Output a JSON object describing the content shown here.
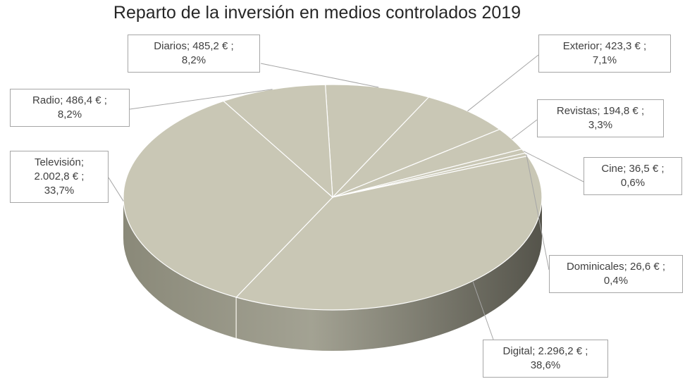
{
  "chart_data": {
    "type": "pie",
    "title": "Reparto de la inversión en medios controlados 2019",
    "unit": "€",
    "slice_color": "#c9c7b5",
    "side_color": "#6f6e63",
    "slices": [
      {
        "name": "Diarios",
        "value": 485.2,
        "percent": 8.2,
        "label_line1": "Diarios;  485,2 € ;",
        "label_line2": "8,2%"
      },
      {
        "name": "Exterior",
        "value": 423.3,
        "percent": 7.1,
        "label_line1": "Exterior;  423,3 € ;",
        "label_line2": "7,1%"
      },
      {
        "name": "Revistas",
        "value": 194.8,
        "percent": 3.3,
        "label_line1": "Revistas;  194,8 € ;",
        "label_line2": "3,3%"
      },
      {
        "name": "Cine",
        "value": 36.5,
        "percent": 0.6,
        "label_line1": "Cine;  36,5 € ;",
        "label_line2": "0,6%"
      },
      {
        "name": "Dominicales",
        "value": 26.6,
        "percent": 0.4,
        "label_line1": "Dominicales;  26,6 € ;",
        "label_line2": "0,4%"
      },
      {
        "name": "Digital",
        "value": 2296.2,
        "percent": 38.6,
        "label_line1": "Digital;  2.296,2 € ;",
        "label_line2": "38,6%"
      },
      {
        "name": "Televisión",
        "value": 2002.8,
        "percent": 33.7,
        "label_line1": "Televisión;",
        "label_line2": "2.002,8 € ;",
        "label_line3": "33,7%"
      },
      {
        "name": "Radio",
        "value": 486.4,
        "percent": 8.2,
        "label_line1": "Radio;  486,4 € ;",
        "label_line2": "8,2%"
      }
    ]
  }
}
